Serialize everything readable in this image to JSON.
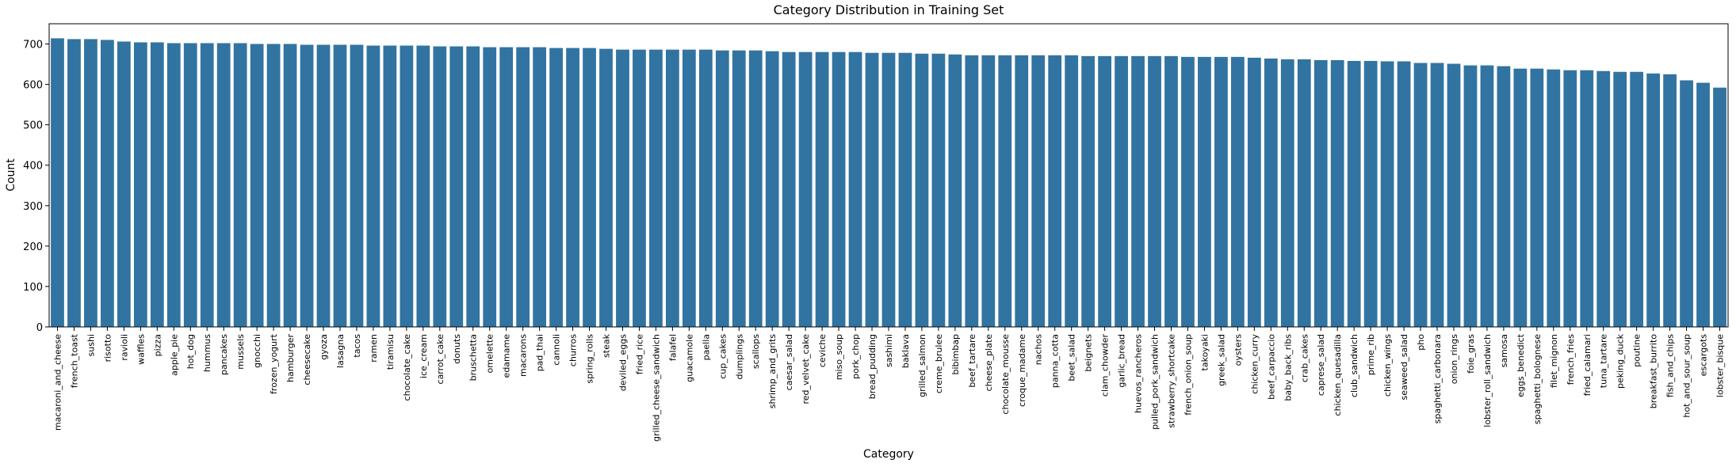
{
  "chart_data": {
    "type": "bar",
    "title": "Category Distribution in Training Set",
    "xlabel": "Category",
    "ylabel": "Count",
    "ylim": [
      0,
      750
    ],
    "yticks": [
      0,
      100,
      200,
      300,
      400,
      500,
      600,
      700
    ],
    "grid": false,
    "bar_color": "#3274a1",
    "categories": [
      "macaroni_and_cheese",
      "french_toast",
      "sushi",
      "risotto",
      "ravioli",
      "waffles",
      "pizza",
      "apple_pie",
      "hot_dog",
      "hummus",
      "pancakes",
      "mussels",
      "gnocchi",
      "frozen_yogurt",
      "hamburger",
      "cheesecake",
      "gyoza",
      "lasagna",
      "tacos",
      "ramen",
      "tiramisu",
      "chocolate_cake",
      "ice_cream",
      "carrot_cake",
      "donuts",
      "bruschetta",
      "omelette",
      "edamame",
      "macarons",
      "pad_thai",
      "cannoli",
      "churros",
      "spring_rolls",
      "steak",
      "deviled_eggs",
      "fried_rice",
      "grilled_cheese_sandwich",
      "falafel",
      "guacamole",
      "paella",
      "cup_cakes",
      "dumplings",
      "scallops",
      "shrimp_and_grits",
      "caesar_salad",
      "red_velvet_cake",
      "ceviche",
      "miso_soup",
      "pork_chop",
      "bread_pudding",
      "sashimi",
      "baklava",
      "grilled_salmon",
      "creme_brulee",
      "bibimbap",
      "beef_tartare",
      "cheese_plate",
      "chocolate_mousse",
      "croque_madame",
      "nachos",
      "panna_cotta",
      "beet_salad",
      "beignets",
      "clam_chowder",
      "garlic_bread",
      "huevos_rancheros",
      "pulled_pork_sandwich",
      "strawberry_shortcake",
      "french_onion_soup",
      "takoyaki",
      "greek_salad",
      "oysters",
      "chicken_curry",
      "beef_carpaccio",
      "baby_back_ribs",
      "crab_cakes",
      "caprese_salad",
      "chicken_quesadilla",
      "club_sandwich",
      "prime_rib",
      "chicken_wings",
      "seaweed_salad",
      "pho",
      "spaghetti_carbonara",
      "onion_rings",
      "foie_gras",
      "lobster_roll_sandwich",
      "samosa",
      "eggs_benedict",
      "spaghetti_bolognese",
      "filet_mignon",
      "french_fries",
      "fried_calamari",
      "tuna_tartare",
      "peking_duck",
      "poutine",
      "breakfast_burrito",
      "fish_and_chips",
      "hot_and_sour_soup",
      "escargots",
      "lobster_bisque"
    ],
    "values": [
      714,
      712,
      712,
      710,
      706,
      704,
      704,
      702,
      702,
      702,
      702,
      702,
      700,
      700,
      700,
      698,
      698,
      698,
      698,
      696,
      696,
      696,
      696,
      694,
      694,
      694,
      692,
      692,
      692,
      692,
      690,
      690,
      690,
      688,
      686,
      686,
      686,
      686,
      686,
      686,
      684,
      684,
      684,
      682,
      680,
      680,
      680,
      680,
      680,
      678,
      678,
      678,
      676,
      676,
      674,
      672,
      672,
      672,
      672,
      672,
      672,
      672,
      670,
      670,
      670,
      670,
      670,
      670,
      668,
      668,
      668,
      668,
      666,
      664,
      662,
      662,
      660,
      660,
      658,
      658,
      657,
      657,
      653,
      653,
      651,
      647,
      647,
      645,
      639,
      639,
      637,
      635,
      635,
      633,
      631,
      631,
      627,
      625,
      610,
      604,
      592
    ]
  }
}
